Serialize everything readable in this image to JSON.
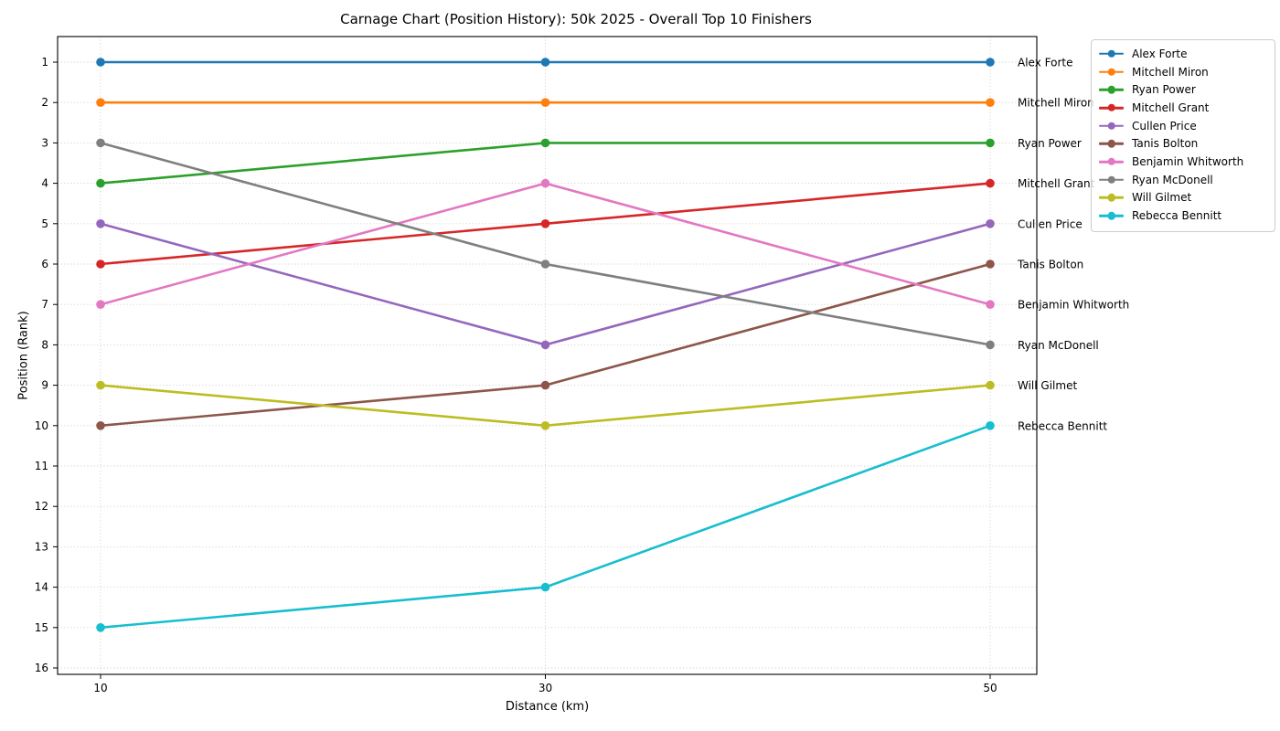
{
  "chart_data": {
    "type": "line",
    "title": "Carnage Chart (Position History): 50k 2025 - Overall Top 10 Finishers",
    "xlabel": "Distance (km)",
    "ylabel": "Position (Rank)",
    "x": [
      10,
      30,
      50
    ],
    "x_ticks": [
      10,
      30,
      50
    ],
    "y_ticks": [
      1,
      2,
      3,
      4,
      5,
      6,
      7,
      8,
      9,
      10,
      11,
      12,
      13,
      14,
      15,
      16
    ],
    "xlim": [
      8.1,
      52.1
    ],
    "ylim": [
      16.15,
      0.37
    ],
    "y_axis_inverted": true,
    "grid": "dotted both axes",
    "legend_position": "upper right",
    "marker": "circle",
    "end_labels_at_final_point": true,
    "series": [
      {
        "name": "Alex Forte",
        "color": "#1f77b4",
        "values": [
          1,
          1,
          1
        ]
      },
      {
        "name": "Mitchell Miron",
        "color": "#ff7f0e",
        "values": [
          2,
          2,
          2
        ]
      },
      {
        "name": "Ryan Power",
        "color": "#2ca02c",
        "values": [
          4,
          3,
          3
        ]
      },
      {
        "name": "Mitchell Grant",
        "color": "#d62728",
        "values": [
          6,
          5,
          4
        ]
      },
      {
        "name": "Cullen Price",
        "color": "#9467bd",
        "values": [
          5,
          8,
          5
        ]
      },
      {
        "name": "Tanis Bolton",
        "color": "#8c564b",
        "values": [
          10,
          9,
          6
        ]
      },
      {
        "name": "Benjamin Whitworth",
        "color": "#e377c2",
        "values": [
          7,
          4,
          7
        ]
      },
      {
        "name": "Ryan McDonell",
        "color": "#7f7f7f",
        "values": [
          3,
          6,
          8
        ]
      },
      {
        "name": "Will Gilmet",
        "color": "#bcbd22",
        "values": [
          9,
          10,
          9
        ]
      },
      {
        "name": "Rebecca Bennitt",
        "color": "#17becf",
        "values": [
          15,
          14,
          10
        ]
      }
    ]
  }
}
